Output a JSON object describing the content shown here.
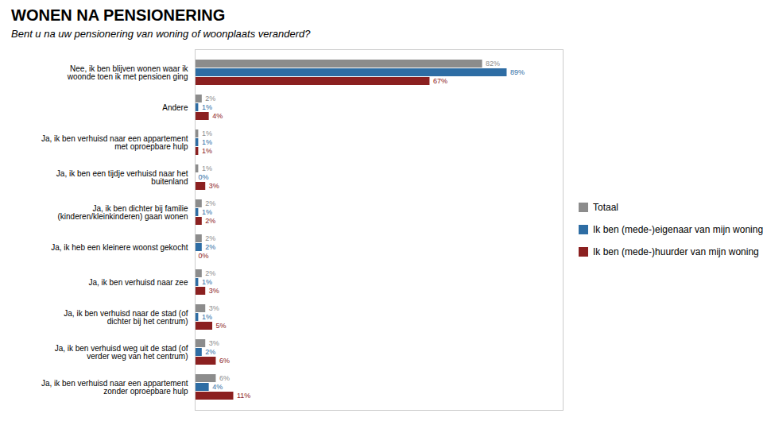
{
  "chart_data": {
    "type": "bar",
    "orientation": "horizontal",
    "title": "WONEN NA PENSIONERING",
    "subtitle": "Bent u na uw pensionering van woning of woonplaats veranderd?",
    "categories": [
      "Nee, ik ben blijven wonen waar ik\nwoonde toen ik met pensioen ging",
      "Andere",
      "Ja, ik ben verhuisd naar een appartement\nmet oproepbare hulp",
      "Ja, ik ben een tijdje verhuisd naar het\nbuitenland",
      "Ja, ik ben dichter bij familie\n(kinderen/kleinkinderen) gaan wonen",
      "Ja, ik heb een kleinere woonst gekocht",
      "Ja, ik ben verhuisd naar zee",
      "Ja, ik ben verhuisd naar de stad (of\ndichter bij het centrum)",
      "Ja, ik ben verhuisd weg uit de stad (of\nverder weg van het centrum)",
      "Ja, ik ben verhuisd naar een appartement\nzonder oproepbare hulp"
    ],
    "series": [
      {
        "name": "Totaal",
        "color": "#8c8c8c",
        "values": [
          82,
          2,
          1,
          1,
          2,
          2,
          2,
          3,
          3,
          6
        ],
        "value_labels": [
          "82%",
          "2%",
          "1%",
          "1%",
          "2%",
          "2%",
          "2%",
          "3%",
          "3%",
          "6%"
        ]
      },
      {
        "name": "Ik ben (mede-)eigenaar van mijn woning",
        "color": "#2e6da4",
        "values": [
          89,
          1,
          1,
          0,
          1,
          2,
          1,
          1,
          2,
          4
        ],
        "value_labels": [
          "89%",
          "1%",
          "1%",
          "0%",
          "1%",
          "2%",
          "1%",
          "1%",
          "2%",
          "4%"
        ]
      },
      {
        "name": "Ik ben (mede-)huurder van mijn woning",
        "color": "#8b2020",
        "values": [
          67,
          4,
          1,
          3,
          2,
          0,
          3,
          5,
          6,
          11
        ],
        "value_labels": [
          "67%",
          "4%",
          "1%",
          "3%",
          "2%",
          "0%",
          "3%",
          "5%",
          "6%",
          "11%"
        ]
      }
    ],
    "xlim": [
      0,
      105
    ],
    "xticks": [],
    "grid": false,
    "legend": "right",
    "data_labels": true,
    "tick_labels": "y"
  }
}
